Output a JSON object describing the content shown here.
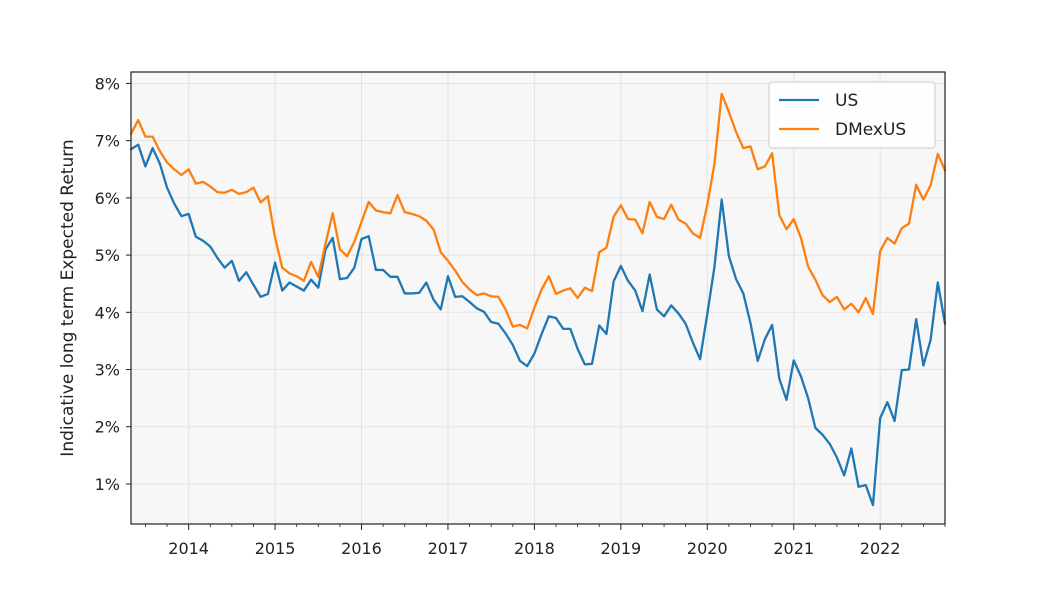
{
  "chart_data": {
    "type": "line",
    "title": "",
    "xlabel": "",
    "ylabel": "Indicative long term Expected Return",
    "xlim": [
      "2013-05",
      "2022-10"
    ],
    "ylim": [
      0.3,
      8.2
    ],
    "y_ticks": [
      {
        "value": 1,
        "label": "1%"
      },
      {
        "value": 2,
        "label": "2%"
      },
      {
        "value": 3,
        "label": "3%"
      },
      {
        "value": 4,
        "label": "4%"
      },
      {
        "value": 5,
        "label": "5%"
      },
      {
        "value": 6,
        "label": "6%"
      },
      {
        "value": 7,
        "label": "7%"
      },
      {
        "value": 8,
        "label": "8%"
      }
    ],
    "x_ticks": [
      {
        "value": "2014-01",
        "label": "2014"
      },
      {
        "value": "2015-01",
        "label": "2015"
      },
      {
        "value": "2016-01",
        "label": "2016"
      },
      {
        "value": "2017-01",
        "label": "2017"
      },
      {
        "value": "2018-01",
        "label": "2018"
      },
      {
        "value": "2019-01",
        "label": "2019"
      },
      {
        "value": "2020-01",
        "label": "2020"
      },
      {
        "value": "2021-01",
        "label": "2021"
      },
      {
        "value": "2022-01",
        "label": "2022"
      }
    ],
    "grid": true,
    "legend_position": "top-right",
    "series": [
      {
        "name": "US",
        "color": "#1f77b4",
        "points": [
          [
            "2013-05",
            6.85
          ],
          [
            "2013-06",
            6.93
          ],
          [
            "2013-07",
            6.55
          ],
          [
            "2013-08",
            6.87
          ],
          [
            "2013-09",
            6.6
          ],
          [
            "2013-10",
            6.18
          ],
          [
            "2013-11",
            5.9
          ],
          [
            "2013-12",
            5.68
          ],
          [
            "2014-01",
            5.72
          ],
          [
            "2014-02",
            5.32
          ],
          [
            "2014-03",
            5.25
          ],
          [
            "2014-04",
            5.15
          ],
          [
            "2014-05",
            4.95
          ],
          [
            "2014-06",
            4.78
          ],
          [
            "2014-07",
            4.9
          ],
          [
            "2014-08",
            4.55
          ],
          [
            "2014-09",
            4.7
          ],
          [
            "2014-10",
            4.48
          ],
          [
            "2014-11",
            4.27
          ],
          [
            "2014-12",
            4.32
          ],
          [
            "2015-01",
            4.87
          ],
          [
            "2015-02",
            4.38
          ],
          [
            "2015-03",
            4.52
          ],
          [
            "2015-04",
            4.45
          ],
          [
            "2015-05",
            4.38
          ],
          [
            "2015-06",
            4.57
          ],
          [
            "2015-07",
            4.43
          ],
          [
            "2015-08",
            5.1
          ],
          [
            "2015-09",
            5.3
          ],
          [
            "2015-10",
            4.58
          ],
          [
            "2015-11",
            4.6
          ],
          [
            "2015-12",
            4.78
          ],
          [
            "2016-01",
            5.28
          ],
          [
            "2016-02",
            5.33
          ],
          [
            "2016-03",
            4.74
          ],
          [
            "2016-04",
            4.74
          ],
          [
            "2016-05",
            4.62
          ],
          [
            "2016-06",
            4.62
          ],
          [
            "2016-07",
            4.33
          ],
          [
            "2016-08",
            4.33
          ],
          [
            "2016-09",
            4.34
          ],
          [
            "2016-10",
            4.52
          ],
          [
            "2016-11",
            4.22
          ],
          [
            "2016-12",
            4.05
          ],
          [
            "2017-01",
            4.63
          ],
          [
            "2017-02",
            4.27
          ],
          [
            "2017-03",
            4.28
          ],
          [
            "2017-04",
            4.18
          ],
          [
            "2017-05",
            4.07
          ],
          [
            "2017-06",
            4.01
          ],
          [
            "2017-07",
            3.83
          ],
          [
            "2017-08",
            3.8
          ],
          [
            "2017-09",
            3.63
          ],
          [
            "2017-10",
            3.43
          ],
          [
            "2017-11",
            3.15
          ],
          [
            "2017-12",
            3.06
          ],
          [
            "2018-01",
            3.28
          ],
          [
            "2018-02",
            3.62
          ],
          [
            "2018-03",
            3.93
          ],
          [
            "2018-04",
            3.9
          ],
          [
            "2018-05",
            3.71
          ],
          [
            "2018-06",
            3.71
          ],
          [
            "2018-07",
            3.36
          ],
          [
            "2018-08",
            3.09
          ],
          [
            "2018-09",
            3.1
          ],
          [
            "2018-10",
            3.77
          ],
          [
            "2018-11",
            3.62
          ],
          [
            "2018-12",
            4.54
          ],
          [
            "2019-01",
            4.81
          ],
          [
            "2019-02",
            4.55
          ],
          [
            "2019-03",
            4.38
          ],
          [
            "2019-04",
            4.02
          ],
          [
            "2019-05",
            4.66
          ],
          [
            "2019-06",
            4.05
          ],
          [
            "2019-07",
            3.93
          ],
          [
            "2019-08",
            4.12
          ],
          [
            "2019-09",
            3.98
          ],
          [
            "2019-10",
            3.8
          ],
          [
            "2019-11",
            3.47
          ],
          [
            "2019-12",
            3.18
          ],
          [
            "2020-01",
            3.97
          ],
          [
            "2020-02",
            4.8
          ],
          [
            "2020-03",
            5.97
          ],
          [
            "2020-04",
            4.98
          ],
          [
            "2020-05",
            4.58
          ],
          [
            "2020-06",
            4.33
          ],
          [
            "2020-07",
            3.81
          ],
          [
            "2020-08",
            3.15
          ],
          [
            "2020-09",
            3.53
          ],
          [
            "2020-10",
            3.78
          ],
          [
            "2020-11",
            2.84
          ],
          [
            "2020-12",
            2.47
          ],
          [
            "2021-01",
            3.16
          ],
          [
            "2021-02",
            2.88
          ],
          [
            "2021-03",
            2.5
          ],
          [
            "2021-04",
            1.98
          ],
          [
            "2021-05",
            1.86
          ],
          [
            "2021-06",
            1.7
          ],
          [
            "2021-07",
            1.46
          ],
          [
            "2021-08",
            1.15
          ],
          [
            "2021-09",
            1.62
          ],
          [
            "2021-10",
            0.95
          ],
          [
            "2021-11",
            0.98
          ],
          [
            "2021-12",
            0.63
          ],
          [
            "2022-01",
            2.15
          ],
          [
            "2022-02",
            2.43
          ],
          [
            "2022-03",
            2.1
          ],
          [
            "2022-04",
            2.99
          ],
          [
            "2022-05",
            3.0
          ],
          [
            "2022-06",
            3.88
          ],
          [
            "2022-07",
            3.07
          ],
          [
            "2022-08",
            3.52
          ],
          [
            "2022-09",
            4.52
          ],
          [
            "2022-10",
            3.8
          ]
        ]
      },
      {
        "name": "DMexUS",
        "color": "#ff7f0e",
        "points": [
          [
            "2013-05",
            7.12
          ],
          [
            "2013-06",
            7.36
          ],
          [
            "2013-07",
            7.07
          ],
          [
            "2013-08",
            7.07
          ],
          [
            "2013-09",
            6.82
          ],
          [
            "2013-10",
            6.62
          ],
          [
            "2013-11",
            6.5
          ],
          [
            "2013-12",
            6.4
          ],
          [
            "2014-01",
            6.5
          ],
          [
            "2014-02",
            6.25
          ],
          [
            "2014-03",
            6.28
          ],
          [
            "2014-04",
            6.2
          ],
          [
            "2014-05",
            6.1
          ],
          [
            "2014-06",
            6.09
          ],
          [
            "2014-07",
            6.14
          ],
          [
            "2014-08",
            6.07
          ],
          [
            "2014-09",
            6.1
          ],
          [
            "2014-10",
            6.18
          ],
          [
            "2014-11",
            5.92
          ],
          [
            "2014-12",
            6.03
          ],
          [
            "2015-01",
            5.3
          ],
          [
            "2015-02",
            4.78
          ],
          [
            "2015-03",
            4.68
          ],
          [
            "2015-04",
            4.63
          ],
          [
            "2015-05",
            4.55
          ],
          [
            "2015-06",
            4.88
          ],
          [
            "2015-07",
            4.62
          ],
          [
            "2015-08",
            5.2
          ],
          [
            "2015-09",
            5.73
          ],
          [
            "2015-10",
            5.1
          ],
          [
            "2015-11",
            4.98
          ],
          [
            "2015-12",
            5.23
          ],
          [
            "2016-01",
            5.58
          ],
          [
            "2016-02",
            5.93
          ],
          [
            "2016-03",
            5.78
          ],
          [
            "2016-04",
            5.75
          ],
          [
            "2016-05",
            5.73
          ],
          [
            "2016-06",
            6.05
          ],
          [
            "2016-07",
            5.75
          ],
          [
            "2016-08",
            5.72
          ],
          [
            "2016-09",
            5.68
          ],
          [
            "2016-10",
            5.6
          ],
          [
            "2016-11",
            5.45
          ],
          [
            "2016-12",
            5.05
          ],
          [
            "2017-01",
            4.9
          ],
          [
            "2017-02",
            4.73
          ],
          [
            "2017-03",
            4.53
          ],
          [
            "2017-04",
            4.4
          ],
          [
            "2017-05",
            4.3
          ],
          [
            "2017-06",
            4.33
          ],
          [
            "2017-07",
            4.28
          ],
          [
            "2017-08",
            4.27
          ],
          [
            "2017-09",
            4.05
          ],
          [
            "2017-10",
            3.75
          ],
          [
            "2017-11",
            3.78
          ],
          [
            "2017-12",
            3.72
          ],
          [
            "2018-01",
            4.08
          ],
          [
            "2018-02",
            4.4
          ],
          [
            "2018-03",
            4.63
          ],
          [
            "2018-04",
            4.32
          ],
          [
            "2018-05",
            4.38
          ],
          [
            "2018-06",
            4.42
          ],
          [
            "2018-07",
            4.25
          ],
          [
            "2018-08",
            4.43
          ],
          [
            "2018-09",
            4.37
          ],
          [
            "2018-10",
            5.05
          ],
          [
            "2018-11",
            5.13
          ],
          [
            "2018-12",
            5.67
          ],
          [
            "2019-01",
            5.87
          ],
          [
            "2019-02",
            5.63
          ],
          [
            "2019-03",
            5.62
          ],
          [
            "2019-04",
            5.38
          ],
          [
            "2019-05",
            5.93
          ],
          [
            "2019-06",
            5.67
          ],
          [
            "2019-07",
            5.63
          ],
          [
            "2019-08",
            5.88
          ],
          [
            "2019-09",
            5.62
          ],
          [
            "2019-10",
            5.55
          ],
          [
            "2019-11",
            5.38
          ],
          [
            "2019-12",
            5.3
          ],
          [
            "2020-01",
            5.88
          ],
          [
            "2020-02",
            6.6
          ],
          [
            "2020-03",
            7.82
          ],
          [
            "2020-04",
            7.5
          ],
          [
            "2020-05",
            7.15
          ],
          [
            "2020-06",
            6.87
          ],
          [
            "2020-07",
            6.9
          ],
          [
            "2020-08",
            6.5
          ],
          [
            "2020-09",
            6.55
          ],
          [
            "2020-10",
            6.78
          ],
          [
            "2020-11",
            5.7
          ],
          [
            "2020-12",
            5.45
          ],
          [
            "2021-01",
            5.63
          ],
          [
            "2021-02",
            5.3
          ],
          [
            "2021-03",
            4.8
          ],
          [
            "2021-04",
            4.57
          ],
          [
            "2021-05",
            4.3
          ],
          [
            "2021-06",
            4.18
          ],
          [
            "2021-07",
            4.27
          ],
          [
            "2021-08",
            4.05
          ],
          [
            "2021-09",
            4.15
          ],
          [
            "2021-10",
            4.0
          ],
          [
            "2021-11",
            4.25
          ],
          [
            "2021-12",
            3.97
          ],
          [
            "2022-01",
            5.07
          ],
          [
            "2022-02",
            5.3
          ],
          [
            "2022-03",
            5.2
          ],
          [
            "2022-04",
            5.47
          ],
          [
            "2022-05",
            5.55
          ],
          [
            "2022-06",
            6.23
          ],
          [
            "2022-07",
            5.97
          ],
          [
            "2022-08",
            6.22
          ],
          [
            "2022-09",
            6.77
          ],
          [
            "2022-10",
            6.48
          ]
        ]
      }
    ]
  }
}
